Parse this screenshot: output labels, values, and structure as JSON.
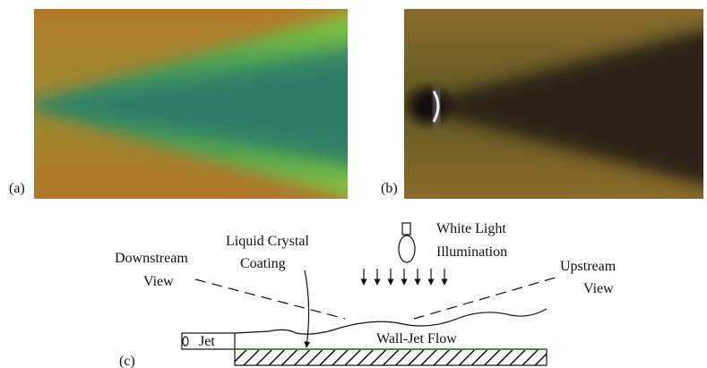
{
  "panels": {
    "a": "(a)",
    "b": "(b)",
    "c": "(c)"
  },
  "diagram": {
    "downstream": [
      "Downstream",
      "View"
    ],
    "liquid_crystal": [
      "Liquid Crystal",
      "Coating"
    ],
    "white_light": [
      "White Light",
      "Illumination"
    ],
    "upstream": [
      "Upstream",
      "View"
    ],
    "jet": "Jet",
    "flow": "Wall-Jet Flow"
  }
}
